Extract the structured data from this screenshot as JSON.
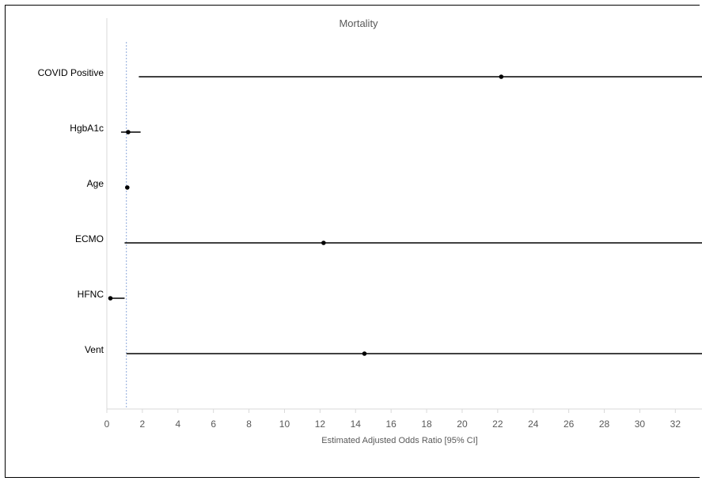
{
  "chart_data": {
    "type": "forest",
    "title": "Mortality",
    "xlabel": "Estimated Adjusted Odds Ratio [95% CI]",
    "ylabel": "",
    "xlim": [
      0,
      33.5
    ],
    "xticks": [
      0,
      2,
      4,
      6,
      8,
      10,
      12,
      14,
      16,
      18,
      20,
      22,
      24,
      26,
      28,
      30,
      32
    ],
    "reference_line": 1.1,
    "grid": false,
    "legend": "none",
    "rows": [
      {
        "label": "COVID Positive",
        "estimate": 22.2,
        "ci_low": 1.8,
        "ci_high": 33.5
      },
      {
        "label": "HgbA1c",
        "estimate": 1.2,
        "ci_low": 0.8,
        "ci_high": 1.9
      },
      {
        "label": "Age",
        "estimate": 1.15,
        "ci_low": 1.1,
        "ci_high": 1.2
      },
      {
        "label": "ECMO",
        "estimate": 12.2,
        "ci_low": 1.0,
        "ci_high": 33.5
      },
      {
        "label": "HFNC",
        "estimate": 0.2,
        "ci_low": 0.1,
        "ci_high": 1.0
      },
      {
        "label": "Vent",
        "estimate": 14.5,
        "ci_low": 1.1,
        "ci_high": 33.5
      }
    ],
    "colors": {
      "ci_line": "#000000",
      "point": "#000000",
      "axis": "#d9d9d9",
      "reference": "#8eaadb",
      "text_muted": "#595959"
    }
  }
}
